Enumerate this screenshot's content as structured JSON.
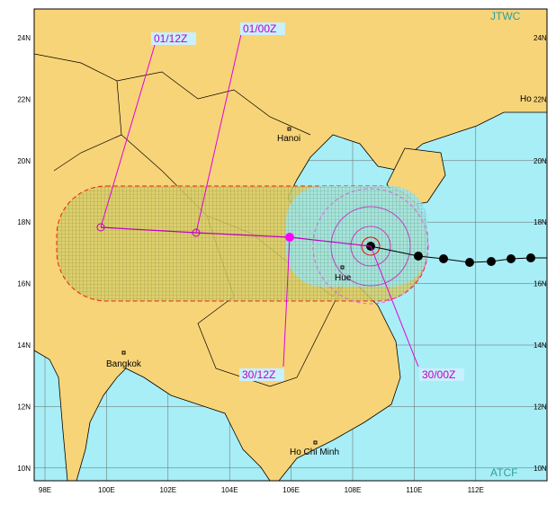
{
  "header": {
    "source": "JTWC",
    "system": "ATCF"
  },
  "latitudes": [
    "24N",
    "22N",
    "20N",
    "18N",
    "16N",
    "14N",
    "12N",
    "10N"
  ],
  "longitudes": [
    "98E",
    "100E",
    "102E",
    "104E",
    "106E",
    "108E",
    "110E",
    "112E"
  ],
  "cities": [
    {
      "label": "Hanoi"
    },
    {
      "label": "Hue"
    },
    {
      "label": "Bangkok"
    },
    {
      "label": "Ho Chi Minh"
    },
    {
      "label": "Ho"
    }
  ],
  "forecast_times": [
    {
      "label": "01/12Z"
    },
    {
      "label": "01/00Z"
    },
    {
      "label": "30/12Z"
    },
    {
      "label": "30/00Z"
    }
  ]
}
